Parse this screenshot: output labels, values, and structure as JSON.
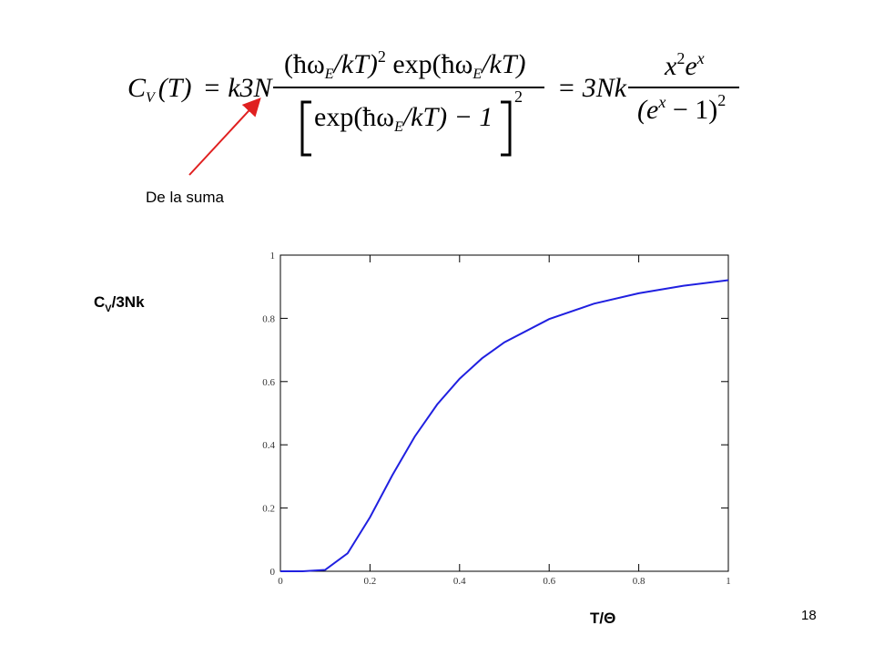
{
  "equation": {
    "lhs": "C",
    "lhs_sub": "V",
    "lhs_arg": "(T)",
    "eq1": "= k3N",
    "num1": "(ħω",
    "num_sub1": "E",
    "num2": "/kT)",
    "num_exp": "2",
    "num3": " exp(ħω",
    "num_sub2": "E",
    "num4": "/kT)",
    "den1": "exp(ħω",
    "den_sub": "E",
    "den2": "/kT) − 1",
    "den_exp": "2",
    "eq2": "= 3Nk",
    "rnum1": "x",
    "rnum_exp1": "2",
    "rnum2": "e",
    "rnum_exp2": "x",
    "rden1": "(e",
    "rden_exp1": "x",
    "rden2": " − 1)",
    "rden_exp2": "2"
  },
  "annotation": "De la suma",
  "page_number": "18",
  "chart_data": {
    "type": "line",
    "ylabel": {
      "main": "C",
      "sub": "V",
      "rest": "/3Nk"
    },
    "xlabel": "T/Θ",
    "x": [
      0,
      0.05,
      0.1,
      0.15,
      0.2,
      0.25,
      0.3,
      0.35,
      0.4,
      0.45,
      0.5,
      0.6,
      0.7,
      0.8,
      0.9,
      1
    ],
    "series": [
      {
        "color": "#2020e0",
        "values": [
          0,
          0,
          0.0045,
          0.0567,
          0.1707,
          0.3041,
          0.4262,
          0.5277,
          0.6089,
          0.6734,
          0.7241,
          0.7977,
          0.8463,
          0.8794,
          0.9032,
          0.9207
        ]
      }
    ],
    "xlim": [
      0,
      1
    ],
    "ylim": [
      0,
      1
    ],
    "xticks": [
      0,
      0.2,
      0.4,
      0.6,
      0.8,
      1
    ],
    "yticks": [
      0,
      0.2,
      0.4,
      0.6,
      0.8,
      1
    ]
  }
}
